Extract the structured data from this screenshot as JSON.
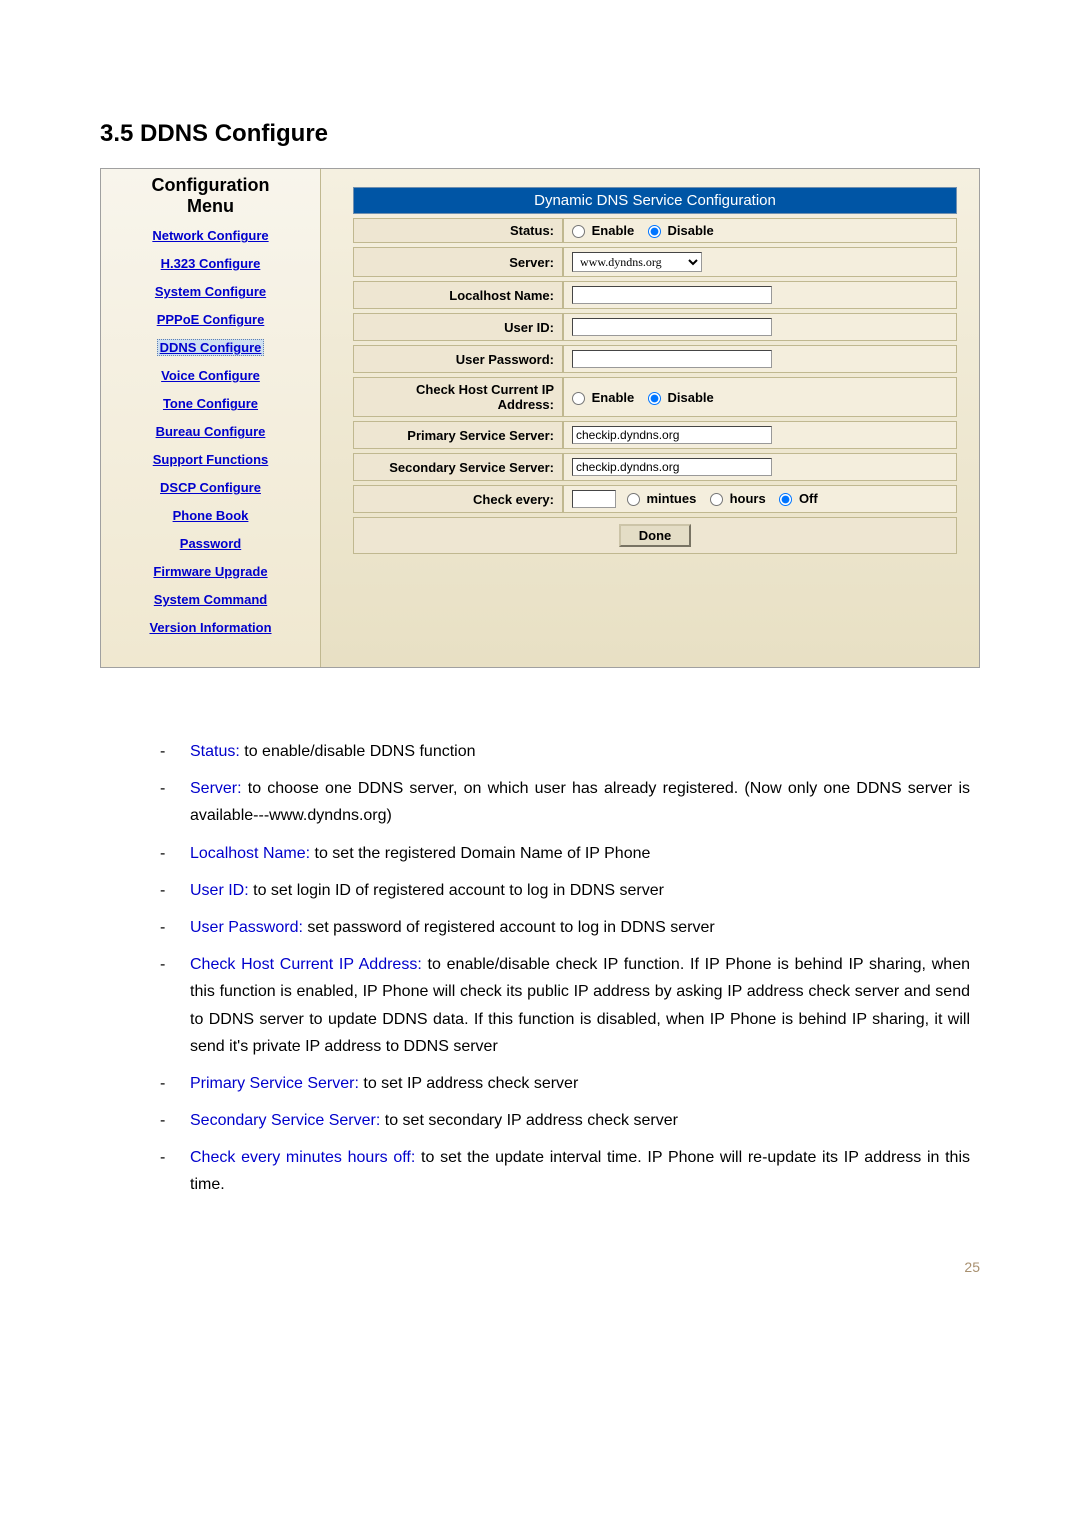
{
  "section_heading": "3.5   DDNS Configure",
  "sidebar": {
    "title_line1": "Configuration",
    "title_line2": "Menu",
    "items": [
      "Network Configure",
      "H.323 Configure",
      "System Configure",
      "PPPoE Configure",
      "DDNS Configure",
      "Voice Configure",
      "Tone Configure",
      "Bureau Configure",
      "Support Functions",
      "DSCP Configure",
      "Phone Book",
      "Password",
      "Firmware Upgrade",
      "System Command",
      "Version Information"
    ],
    "active_index": 4,
    "link_color": "#0000cc"
  },
  "panel": {
    "title": "Dynamic DNS Service Configuration",
    "title_bg": "#0055a5",
    "title_color": "#ffffff",
    "rows": {
      "status": {
        "label": "Status:",
        "option_enable": "Enable",
        "option_disable": "Disable",
        "selected": "Disable"
      },
      "server": {
        "label": "Server:",
        "options": [
          "www.dyndns.org"
        ],
        "value": "www.dyndns.org"
      },
      "localhost": {
        "label": "Localhost Name:",
        "value": ""
      },
      "userid": {
        "label": "User ID:",
        "value": ""
      },
      "userpw": {
        "label": "User Password:",
        "value": ""
      },
      "checkhost": {
        "label": "Check Host Current IP Address:",
        "option_enable": "Enable",
        "option_disable": "Disable",
        "selected": "Disable"
      },
      "primary": {
        "label": "Primary Service Server:",
        "value": "checkip.dyndns.org"
      },
      "secondary": {
        "label": "Secondary Service Server:",
        "value": "checkip.dyndns.org"
      },
      "checkevery": {
        "label": "Check every:",
        "value": "",
        "option_minutes": "mintues",
        "option_hours": "hours",
        "option_off": "Off",
        "selected": "Off"
      }
    },
    "done_label": "Done"
  },
  "descriptions": [
    {
      "term": "Status:",
      "text": " to enable/disable DDNS function"
    },
    {
      "term": "Server:",
      "text": " to choose one DDNS server, on which user has already registered. (Now only one DDNS server is available---www.dyndns.org)"
    },
    {
      "term": "Localhost Name:",
      "text": " to set the registered Domain Name of IP Phone"
    },
    {
      "term": "User ID:",
      "text": " to set login ID of registered account to log in DDNS server"
    },
    {
      "term": "User Password:",
      "text": " set password of registered account to log in DDNS server"
    },
    {
      "term": "Check Host Current IP Address:",
      "text": " to enable/disable check IP function. If IP Phone is behind IP sharing, when this function is enabled, IP Phone will check its public IP address by asking IP address check server and send to DDNS server to update DDNS data. If this function is disabled, when IP Phone is behind IP sharing, it will send it's private IP address to DDNS server"
    },
    {
      "term": "Primary Service Server:",
      "text": " to set IP address check server"
    },
    {
      "term": "Secondary Service Server:",
      "text": " to set secondary IP address check server"
    },
    {
      "term": "Check every minutes hours off:",
      "text": " to set the update interval time. IP Phone will re-update its IP address in this time."
    }
  ],
  "page_number": "25",
  "term_color": "#0000cc"
}
